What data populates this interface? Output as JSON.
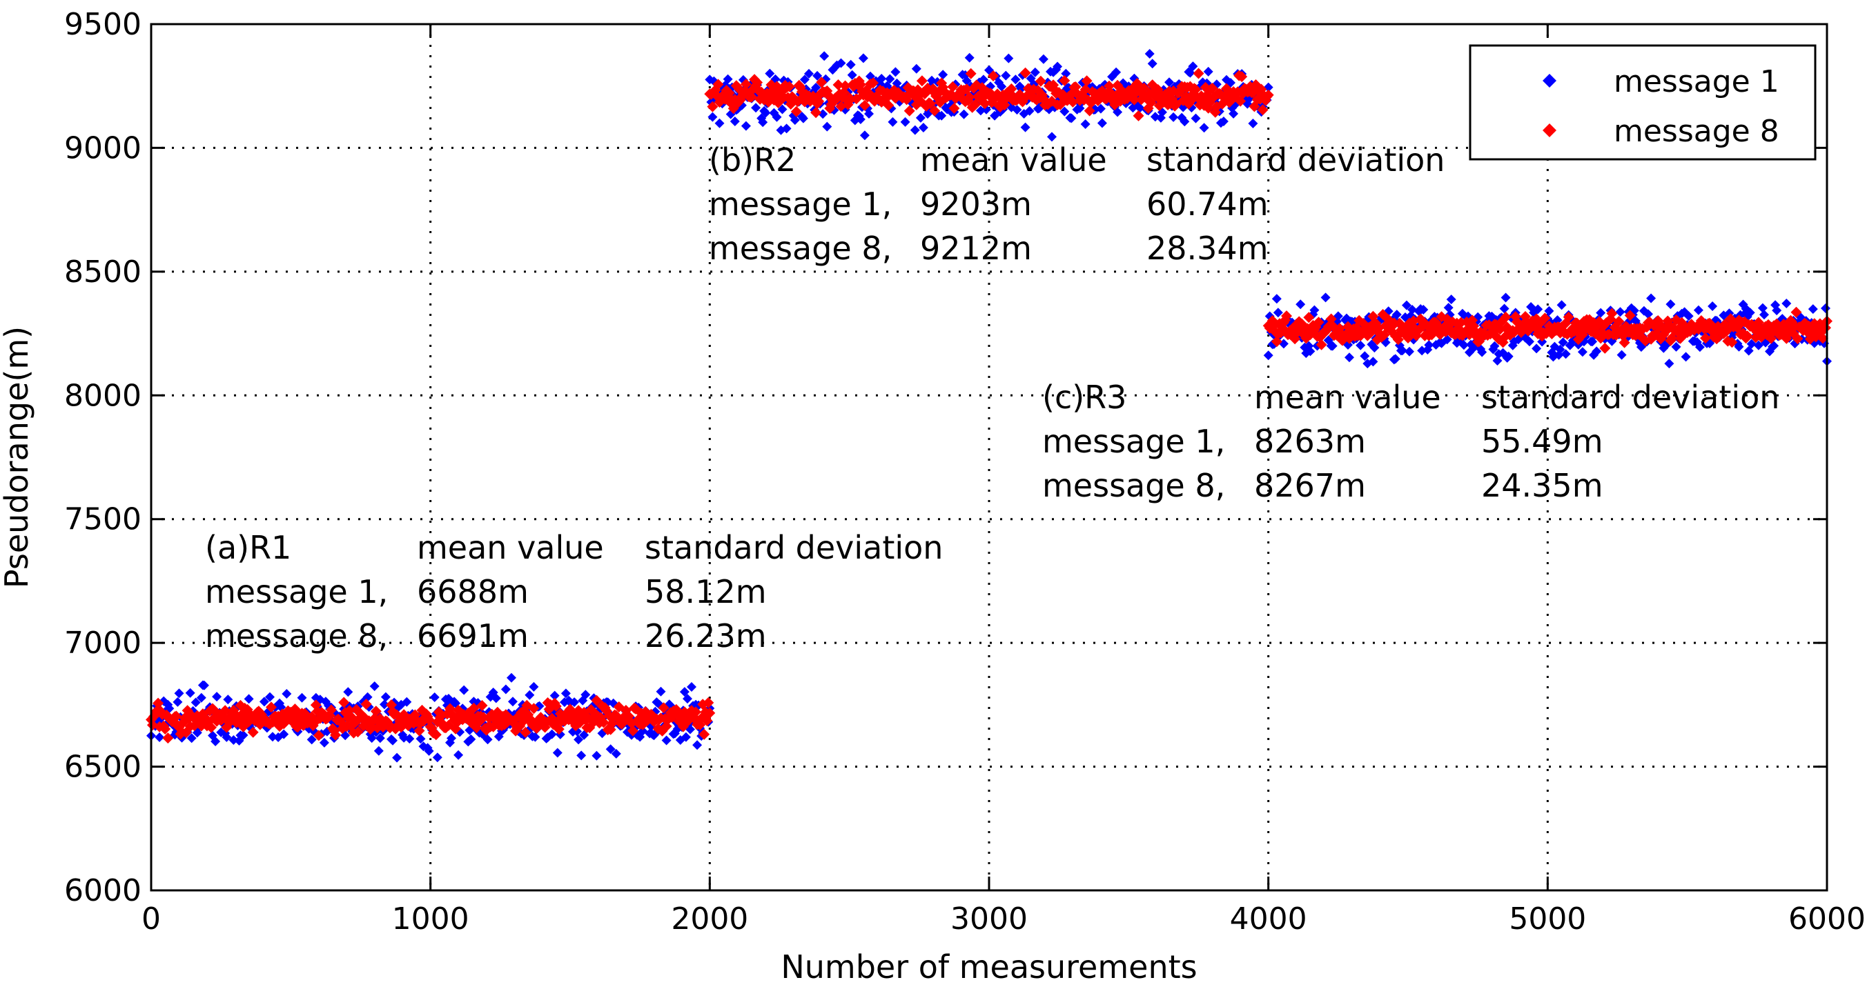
{
  "chart_data": {
    "type": "scatter",
    "title": "",
    "xlabel": "Number of measurements",
    "ylabel": "Pseudorange(m)",
    "xlim": [
      0,
      6000
    ],
    "ylim": [
      6000,
      9500
    ],
    "xticks": [
      "0",
      "1000",
      "2000",
      "3000",
      "4000",
      "5000",
      "6000"
    ],
    "yticks": [
      "6000",
      "6500",
      "7000",
      "7500",
      "8000",
      "8500",
      "9000",
      "9500"
    ],
    "grid": true,
    "legend_position": "top-right",
    "legend": [
      "message 1",
      "message 8"
    ],
    "colors": {
      "message 1": "#0000ff",
      "message 8": "#ff0000"
    },
    "series": [
      {
        "name": "message 1",
        "color": "#0000ff",
        "marker": "diamond",
        "segments": [
          {
            "receiver": "R1",
            "x_range": [
              0,
              2000
            ],
            "mean": 6688,
            "std": 58.12
          },
          {
            "receiver": "R2",
            "x_range": [
              2000,
              4000
            ],
            "mean": 9203,
            "std": 60.74
          },
          {
            "receiver": "R3",
            "x_range": [
              4000,
              6000
            ],
            "mean": 8263,
            "std": 55.49
          }
        ]
      },
      {
        "name": "message 8",
        "color": "#ff0000",
        "marker": "diamond",
        "segments": [
          {
            "receiver": "R1",
            "x_range": [
              0,
              2000
            ],
            "mean": 6691,
            "std": 26.23
          },
          {
            "receiver": "R2",
            "x_range": [
              2000,
              4000
            ],
            "mean": 9212,
            "std": 28.34
          },
          {
            "receiver": "R3",
            "x_range": [
              4000,
              6000
            ],
            "mean": 8267,
            "std": 24.35
          }
        ]
      }
    ],
    "annotations": [
      {
        "id": "r1",
        "header": [
          "(a)R1",
          "mean value",
          "standard deviation"
        ],
        "rows": [
          [
            "message 1,",
            "6688m",
            "58.12m"
          ],
          [
            "message 8,",
            "6691m",
            "26.23m"
          ]
        ]
      },
      {
        "id": "r2",
        "header": [
          "(b)R2",
          "mean value",
          "standard deviation"
        ],
        "rows": [
          [
            "message 1,",
            "9203m",
            "60.74m"
          ],
          [
            "message 8,",
            "9212m",
            "28.34m"
          ]
        ]
      },
      {
        "id": "r3",
        "header": [
          "(c)R3",
          "mean value",
          "standard deviation"
        ],
        "rows": [
          [
            "message 1,",
            "8263m",
            "55.49m"
          ],
          [
            "message 8,",
            "8267m",
            "24.35m"
          ]
        ]
      }
    ]
  }
}
